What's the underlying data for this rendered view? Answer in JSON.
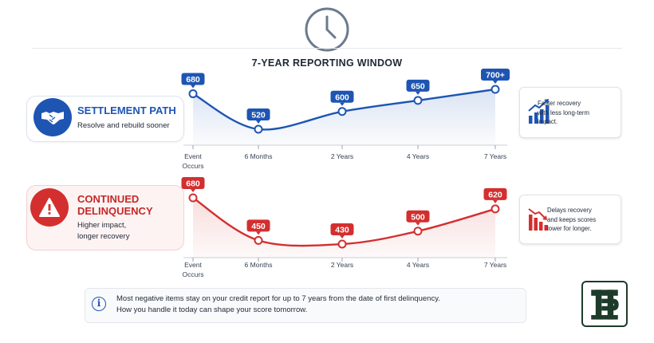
{
  "title": "7-YEAR REPORTING WINDOW",
  "settlement": {
    "title": "SETTLEMENT PATH",
    "subtitle": "Resolve and rebuild sooner",
    "note_line1": "Faster recovery",
    "note_line2": "with less long-term",
    "note_line3": "impact."
  },
  "delinquency": {
    "title_line1": "CONTINUED",
    "title_line2": "DELINQUENCY",
    "subtitle_line1": "Higher impact,",
    "subtitle_line2": "longer recovery",
    "note_line1": "Delays recovery",
    "note_line2": "and keeps scores",
    "note_line3": "lower for longer."
  },
  "info": {
    "line1": "Most negative items stay on your credit report for up to 7 years from the date of first delinquency.",
    "line2": "How you handle it today can shape your score tomorrow."
  },
  "colors": {
    "blue": "#1e55b3",
    "red": "#d32f2f"
  },
  "chart_data": [
    {
      "type": "line",
      "categories": [
        "Event Occurs",
        "6 Months",
        "2 Years",
        "4 Years",
        "7 Years"
      ],
      "values": [
        680,
        520,
        600,
        650,
        700
      ],
      "labels": [
        "680",
        "520",
        "600",
        "650",
        "700+"
      ],
      "ylim": [
        440,
        720
      ],
      "color": "#1e55b3"
    },
    {
      "type": "line",
      "categories": [
        "Event Occurs",
        "6 Months",
        "2 Years",
        "4 Years",
        "7 Years"
      ],
      "values": [
        680,
        450,
        430,
        500,
        620
      ],
      "labels": [
        "680",
        "450",
        "430",
        "500",
        "620"
      ],
      "ylim": [
        410,
        700
      ],
      "color": "#d32f2f"
    }
  ]
}
